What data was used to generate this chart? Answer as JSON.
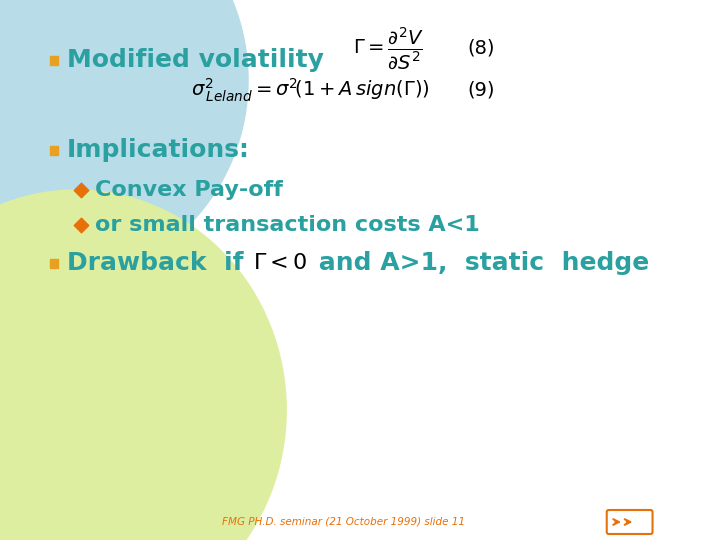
{
  "bg_color": "#ffffff",
  "left_circle_color": "#add8e6",
  "bottom_left_color": "#e8f5c8",
  "bullet_color": "#e8a020",
  "text_color": "#2aa0a0",
  "bullet_sub_color": "#e8700a",
  "footer_color": "#e8700a",
  "title": "",
  "bullet1_text": "Modified volatility",
  "bullet2_text": "Implications:",
  "sub1_text": "Convex Pay-off",
  "sub2_text": "or small transaction costs A<1",
  "bullet3_text": "Drawback  if ",
  "bullet3_text2": " and A>1,  static  hedge",
  "footer_text": "FMG PH.D. seminar (21 October 1999) slide 11",
  "eq8_label": "(8)",
  "eq9_label": "(9)"
}
